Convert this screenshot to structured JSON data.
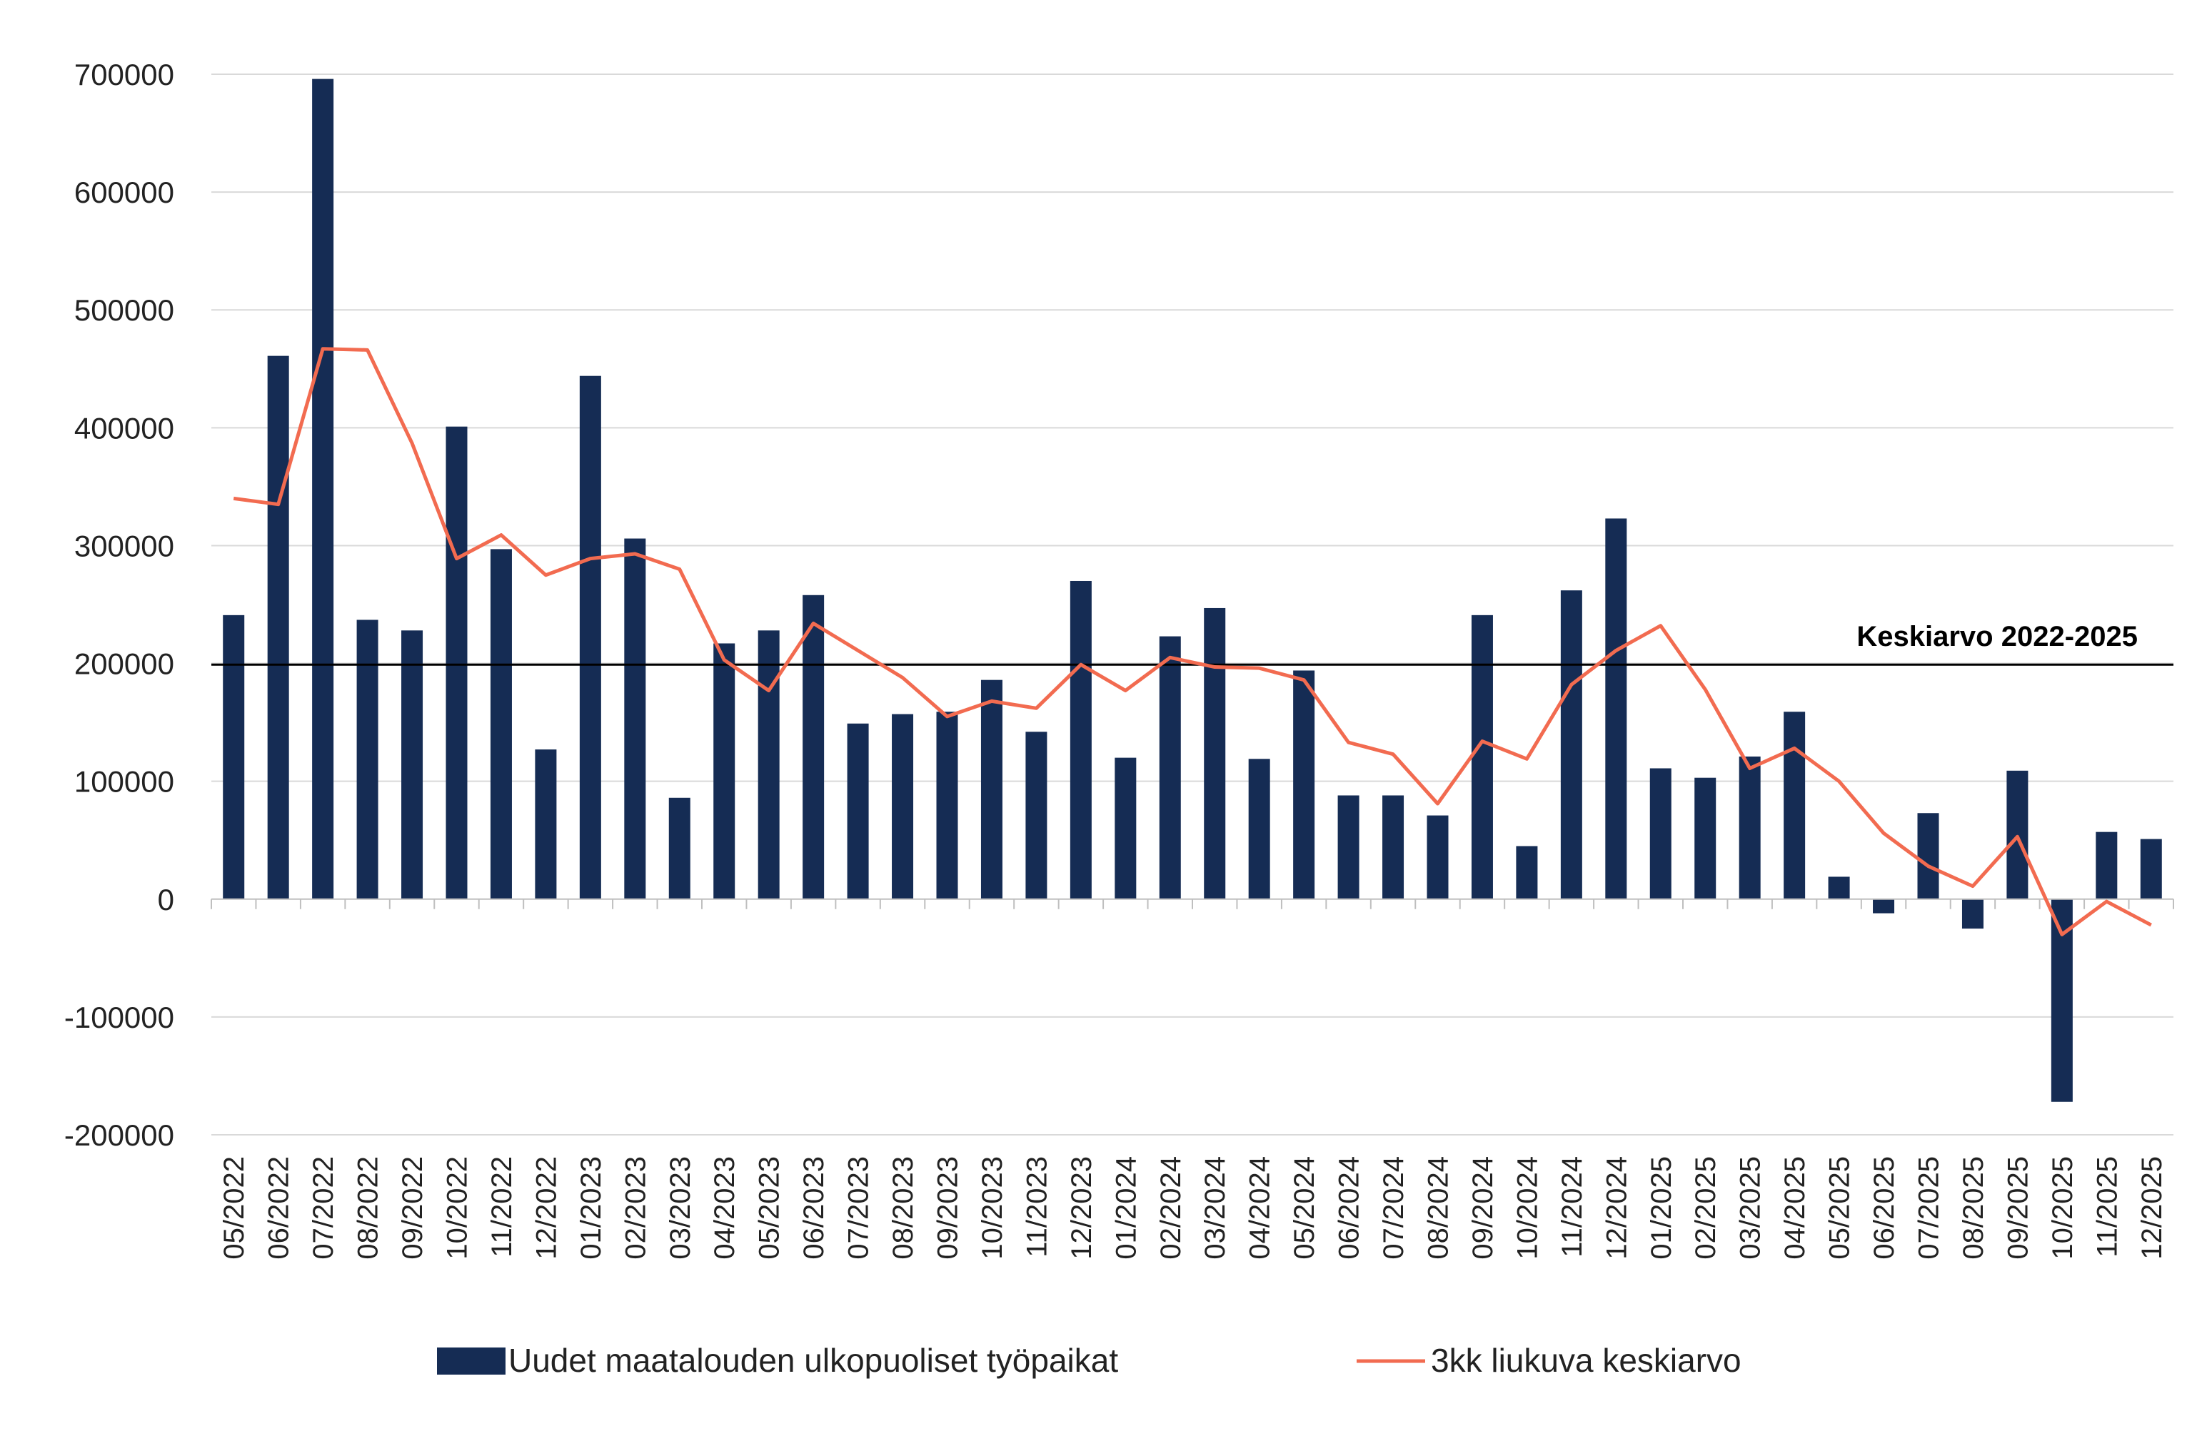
{
  "chart_data": {
    "type": "bar",
    "title": "",
    "xlabel": "",
    "ylabel": "",
    "ylim": [
      -200000,
      700000
    ],
    "yticks": [
      700000,
      600000,
      500000,
      400000,
      300000,
      200000,
      100000,
      0,
      -100000,
      -200000
    ],
    "grid": true,
    "legend_placement": "bottom",
    "categories": [
      "05/2022",
      "06/2022",
      "07/2022",
      "08/2022",
      "09/2022",
      "10/2022",
      "11/2022",
      "12/2022",
      "01/2023",
      "02/2023",
      "03/2023",
      "04/2023",
      "05/2023",
      "06/2023",
      "07/2023",
      "08/2023",
      "09/2023",
      "10/2023",
      "11/2023",
      "12/2023",
      "01/2024",
      "02/2024",
      "03/2024",
      "04/2024",
      "05/2024",
      "06/2024",
      "07/2024",
      "08/2024",
      "09/2024",
      "10/2024",
      "11/2024",
      "12/2024",
      "01/2025",
      "02/2025",
      "03/2025",
      "04/2025",
      "05/2025",
      "06/2025",
      "07/2025",
      "08/2025",
      "09/2025",
      "10/2025",
      "11/2025",
      "12/2025"
    ],
    "series": [
      {
        "name": "Uudet maatalouden ulkopuoliset työpaikat",
        "type": "bar",
        "color": "#152c54",
        "values": [
          241000,
          461000,
          696000,
          237000,
          228000,
          401000,
          297000,
          127000,
          444000,
          306000,
          86000,
          217000,
          228000,
          258000,
          149000,
          157000,
          159000,
          186000,
          142000,
          270000,
          120000,
          223000,
          247000,
          119000,
          194000,
          88000,
          88000,
          71000,
          241000,
          45000,
          262000,
          323000,
          111000,
          103000,
          121000,
          159000,
          19000,
          -12000,
          73000,
          -25000,
          109000,
          -172000,
          57000,
          51000
        ]
      },
      {
        "name": "3kk liukuva keskiarvo",
        "type": "line",
        "color": "#f26b50",
        "values": [
          340000,
          335000,
          467000,
          466000,
          387000,
          289000,
          309000,
          275000,
          289000,
          293000,
          280000,
          203000,
          177000,
          234000,
          211000,
          188000,
          155000,
          168000,
          162000,
          199000,
          177000,
          205000,
          197000,
          196000,
          186000,
          133000,
          123000,
          81000,
          134000,
          119000,
          182000,
          211000,
          232000,
          178000,
          111000,
          128000,
          100000,
          56000,
          28000,
          11000,
          53000,
          -30000,
          -2000,
          -22000
        ]
      }
    ],
    "reference_line": {
      "label": "Keskiarvo 2022-2025",
      "value": 199000,
      "color": "#000000"
    }
  }
}
